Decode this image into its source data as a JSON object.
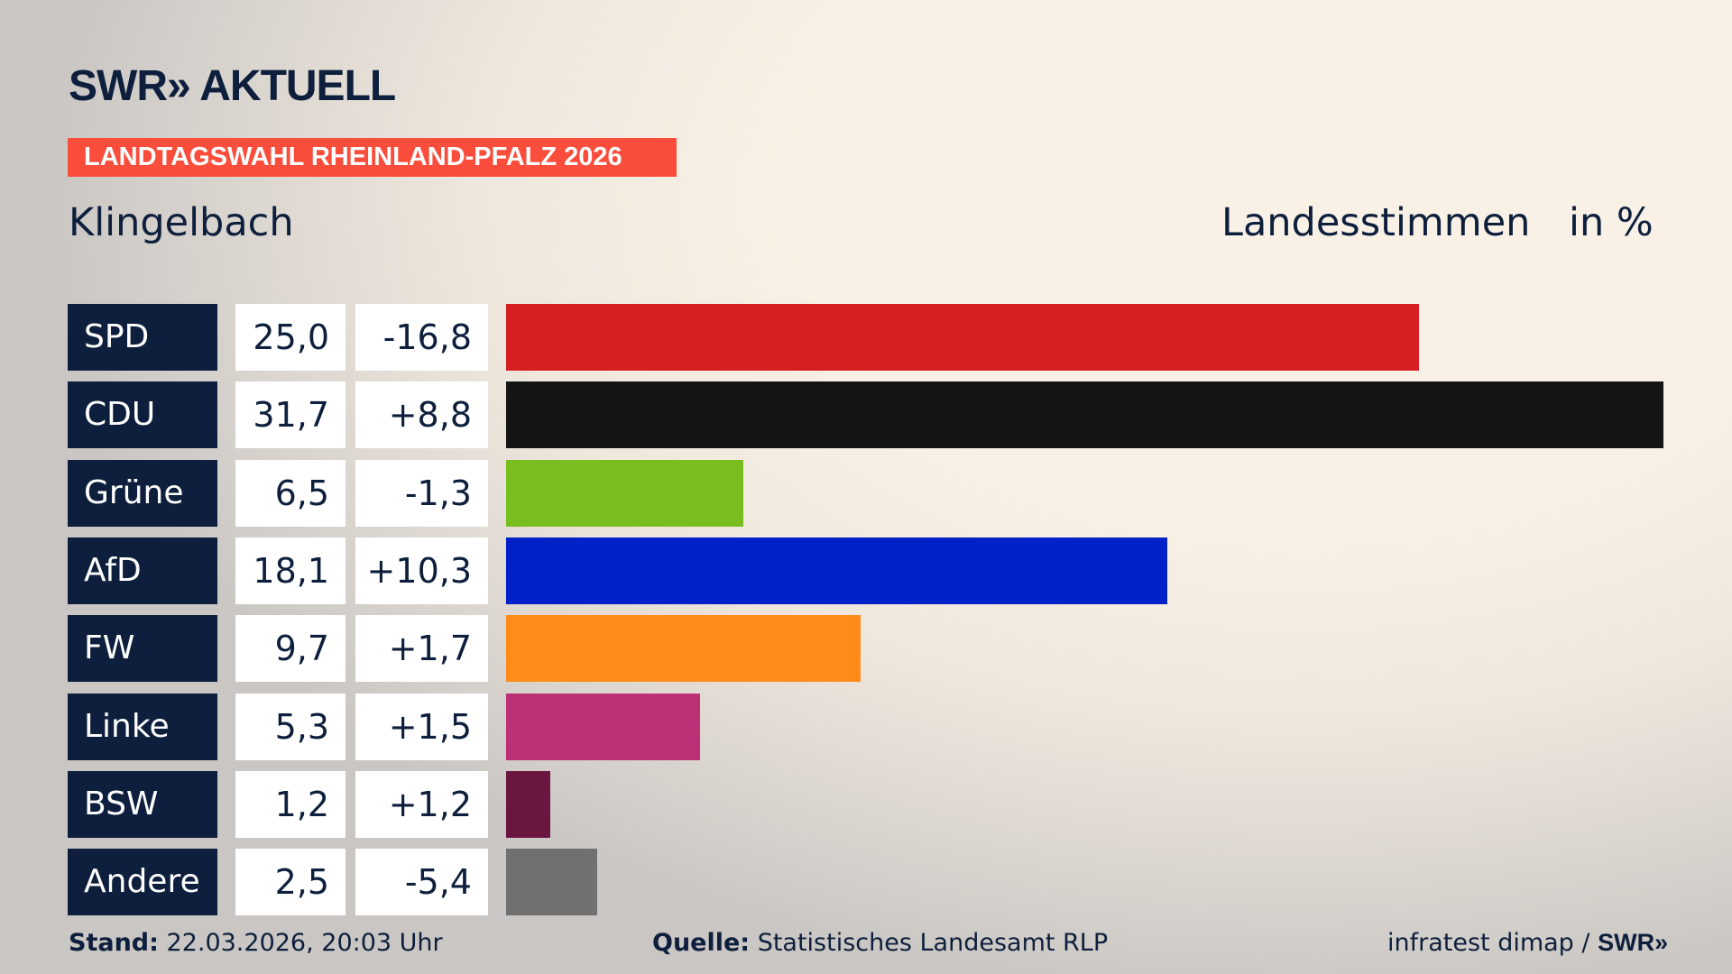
{
  "header": {
    "logo": "SWR» AKTUELL",
    "banner": "LANDTAGSWAHL RHEINLAND-PFALZ 2026",
    "place": "Klingelbach",
    "measure": "Landesstimmen",
    "unit": "in %"
  },
  "chart_data": {
    "type": "bar",
    "orientation": "horizontal",
    "categories": [
      "SPD",
      "CDU",
      "Grüne",
      "AfD",
      "FW",
      "Linke",
      "BSW",
      "Andere"
    ],
    "values": [
      25.0,
      31.7,
      6.5,
      18.1,
      9.7,
      5.3,
      1.2,
      2.5
    ],
    "value_labels": [
      "25,0",
      "31,7",
      "6,5",
      "18,1",
      "9,7",
      "5,3",
      "1,2",
      "2,5"
    ],
    "diff_labels": [
      "-16,8",
      "+8,8",
      "-1,3",
      "+10,3",
      "+1,7",
      "+1,5",
      "+1,2",
      "-5,4"
    ],
    "colors": [
      "#d71f21",
      "#141414",
      "#78be1e",
      "#0020c8",
      "#ff8c19",
      "#bc3075",
      "#6a1640",
      "#707070"
    ],
    "xlim": [
      0,
      31.7
    ],
    "grid": false,
    "legend": "none"
  },
  "footer": {
    "stand_label": "Stand:",
    "stand": "22.03.2026, 20:03 Uhr",
    "source_label": "Quelle:",
    "source": "Statistisches Landesamt RLP",
    "credit": "infratest dimap / ",
    "credit_logo": "SWR»"
  }
}
